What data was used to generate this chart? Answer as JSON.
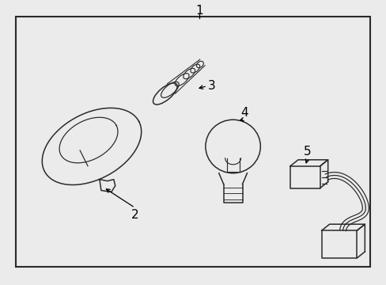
{
  "bg_color": "#ebebeb",
  "box_color": "#ebebeb",
  "line_color": "#2a2a2a",
  "label_color": "#000000",
  "lw": 1.1
}
